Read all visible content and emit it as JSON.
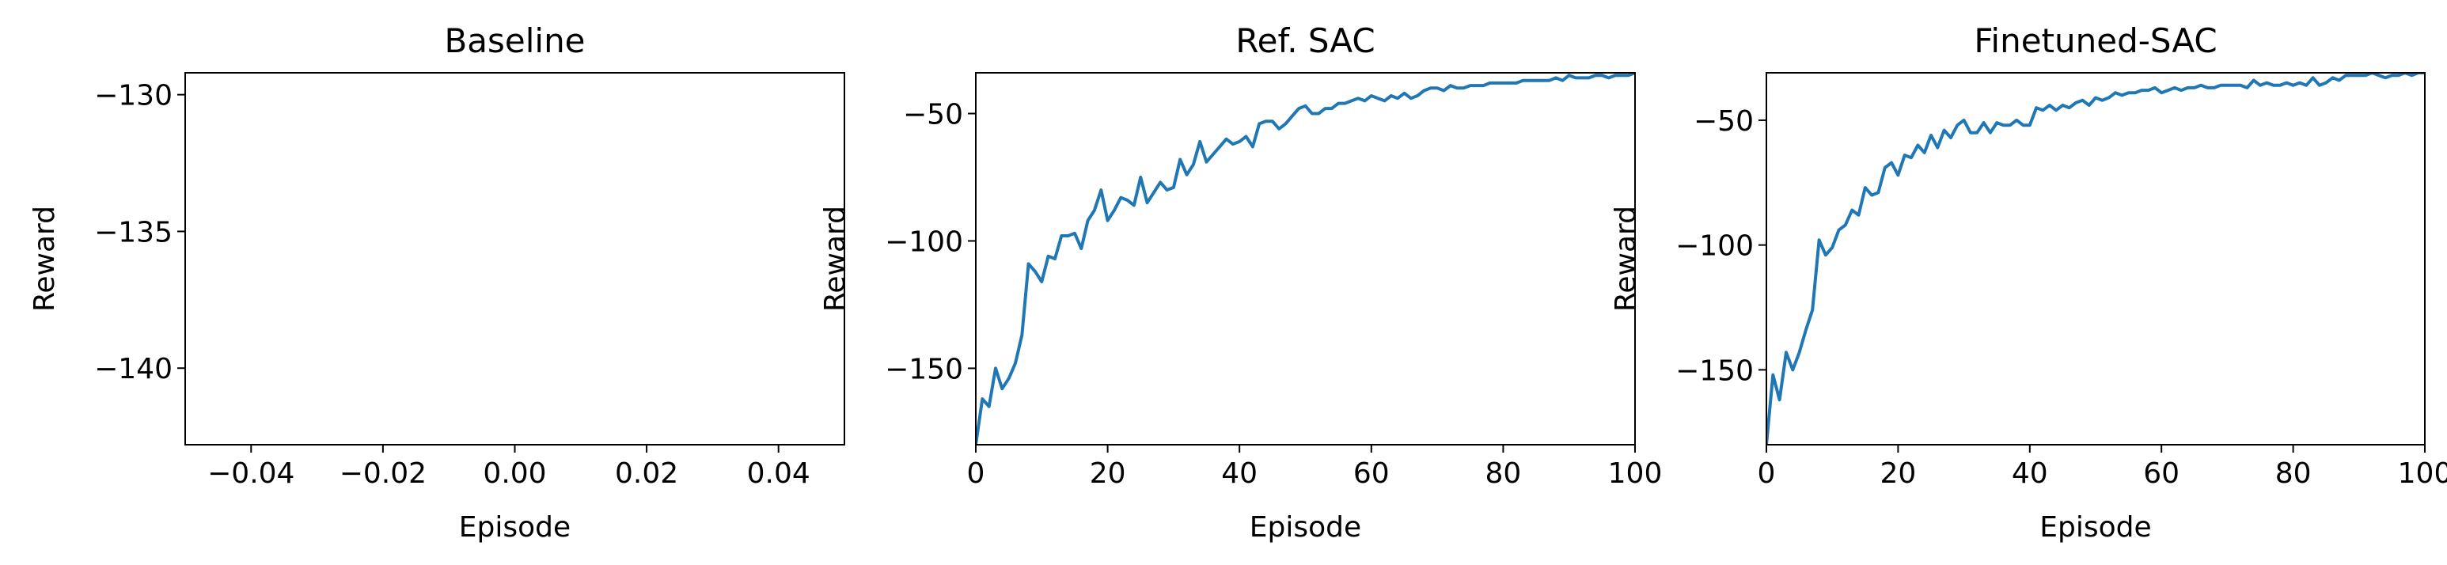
{
  "chart_data": [
    {
      "type": "line",
      "title": "Baseline",
      "xlabel": "Episode",
      "ylabel": "Reward",
      "xlim": [
        -0.05,
        0.05
      ],
      "ylim": [
        -142.8,
        -129.2
      ],
      "xticks": [
        -0.04,
        -0.02,
        0.0,
        0.02,
        0.04
      ],
      "xtick_labels": [
        "−0.04",
        "−0.02",
        "0.00",
        "0.02",
        "0.04"
      ],
      "yticks": [
        -130,
        -135,
        -140
      ],
      "ytick_labels": [
        "−130",
        "−135",
        "−140"
      ],
      "grid": false,
      "series": [
        {
          "color": "#1f77b4",
          "x": [],
          "y": []
        }
      ]
    },
    {
      "type": "line",
      "title": "Ref. SAC",
      "xlabel": "Episode",
      "ylabel": "Reward",
      "xlim": [
        0,
        100
      ],
      "ylim": [
        -180,
        -34
      ],
      "xticks": [
        0,
        20,
        40,
        60,
        80,
        100
      ],
      "xtick_labels": [
        "0",
        "20",
        "40",
        "60",
        "80",
        "100"
      ],
      "yticks": [
        -50,
        -100,
        -150
      ],
      "ytick_labels": [
        "−50",
        "−100",
        "−150"
      ],
      "grid": false,
      "series": [
        {
          "color": "#1f77b4",
          "x": [
            0,
            1,
            2,
            3,
            4,
            5,
            6,
            7,
            8,
            9,
            10,
            11,
            12,
            13,
            14,
            15,
            16,
            17,
            18,
            19,
            20,
            21,
            22,
            23,
            24,
            25,
            26,
            27,
            28,
            29,
            30,
            31,
            32,
            33,
            34,
            35,
            36,
            37,
            38,
            39,
            40,
            41,
            42,
            43,
            44,
            45,
            46,
            47,
            48,
            49,
            50,
            51,
            52,
            53,
            54,
            55,
            56,
            57,
            58,
            59,
            60,
            61,
            62,
            63,
            64,
            65,
            66,
            67,
            68,
            69,
            70,
            71,
            72,
            73,
            74,
            75,
            76,
            77,
            78,
            79,
            80,
            81,
            82,
            83,
            84,
            85,
            86,
            87,
            88,
            89,
            90,
            91,
            92,
            93,
            94,
            95,
            96,
            97,
            98,
            99,
            100
          ],
          "y": [
            -180,
            -162,
            -165,
            -150,
            -158,
            -154,
            -148,
            -137,
            -109,
            -112,
            -116,
            -106,
            -107,
            -98,
            -98,
            -97,
            -103,
            -92,
            -88,
            -80,
            -92,
            -88,
            -83,
            -84,
            -86,
            -75,
            -85,
            -81,
            -77,
            -80,
            -79,
            -68,
            -74,
            -70,
            -61,
            -69,
            -66,
            -63,
            -60,
            -62,
            -61,
            -59,
            -63,
            -54,
            -53,
            -53,
            -56,
            -54,
            -51,
            -48,
            -47,
            -50,
            -50,
            -48,
            -48,
            -46,
            -46,
            -45,
            -44,
            -45,
            -43,
            -44,
            -45,
            -43,
            -44,
            -42,
            -44,
            -43,
            -41,
            -40,
            -40,
            -41,
            -39,
            -40,
            -40,
            -39,
            -39,
            -39,
            -38,
            -38,
            -38,
            -38,
            -38,
            -37,
            -37,
            -37,
            -37,
            -37,
            -36,
            -37,
            -35,
            -36,
            -36,
            -36,
            -35,
            -35,
            -36,
            -35,
            -35,
            -35,
            -34
          ]
        }
      ]
    },
    {
      "type": "line",
      "title": "Finetuned-SAC",
      "xlabel": "Episode",
      "ylabel": "Reward",
      "xlim": [
        0,
        100
      ],
      "ylim": [
        -180,
        -31
      ],
      "xticks": [
        0,
        20,
        40,
        60,
        80,
        100
      ],
      "xtick_labels": [
        "0",
        "20",
        "40",
        "60",
        "80",
        "100"
      ],
      "yticks": [
        -50,
        -100,
        -150
      ],
      "ytick_labels": [
        "−50",
        "−100",
        "−150"
      ],
      "grid": false,
      "series": [
        {
          "color": "#1f77b4",
          "x": [
            0,
            1,
            2,
            3,
            4,
            5,
            6,
            7,
            8,
            9,
            10,
            11,
            12,
            13,
            14,
            15,
            16,
            17,
            18,
            19,
            20,
            21,
            22,
            23,
            24,
            25,
            26,
            27,
            28,
            29,
            30,
            31,
            32,
            33,
            34,
            35,
            36,
            37,
            38,
            39,
            40,
            41,
            42,
            43,
            44,
            45,
            46,
            47,
            48,
            49,
            50,
            51,
            52,
            53,
            54,
            55,
            56,
            57,
            58,
            59,
            60,
            61,
            62,
            63,
            64,
            65,
            66,
            67,
            68,
            69,
            70,
            71,
            72,
            73,
            74,
            75,
            76,
            77,
            78,
            79,
            80,
            81,
            82,
            83,
            84,
            85,
            86,
            87,
            88,
            89,
            90,
            91,
            92,
            93,
            94,
            95,
            96,
            97,
            98,
            99,
            100
          ],
          "y": [
            -180,
            -152,
            -162,
            -143,
            -150,
            -143,
            -134,
            -126,
            -98,
            -104,
            -101,
            -94,
            -92,
            -86,
            -88,
            -77,
            -80,
            -79,
            -69,
            -67,
            -72,
            -64,
            -65,
            -60,
            -63,
            -56,
            -61,
            -54,
            -57,
            -52,
            -50,
            -55,
            -55,
            -51,
            -55,
            -51,
            -52,
            -52,
            -50,
            -52,
            -52,
            -45,
            -46,
            -44,
            -46,
            -44,
            -45,
            -43,
            -42,
            -44,
            -41,
            -42,
            -41,
            -39,
            -40,
            -39,
            -39,
            -38,
            -38,
            -37,
            -39,
            -38,
            -37,
            -38,
            -37,
            -37,
            -36,
            -37,
            -37,
            -36,
            -36,
            -36,
            -36,
            -37,
            -34,
            -36,
            -35,
            -36,
            -36,
            -35,
            -36,
            -35,
            -36,
            -33,
            -36,
            -35,
            -33,
            -34,
            -32,
            -32,
            -32,
            -32,
            -31,
            -32,
            -33,
            -32,
            -32,
            -31,
            -32,
            -31,
            -31
          ]
        }
      ]
    }
  ]
}
